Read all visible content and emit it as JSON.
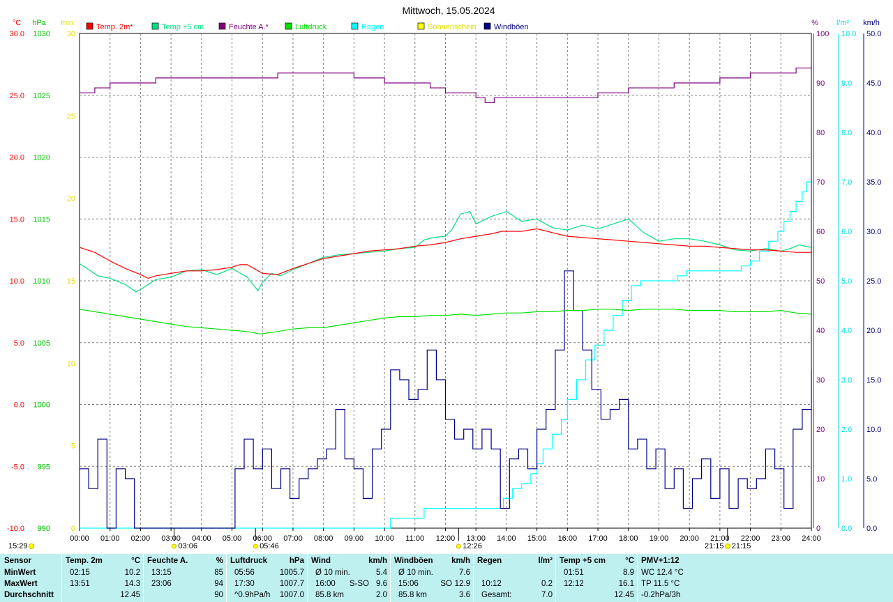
{
  "chart_data": {
    "type": "line",
    "title": "Mittwoch, 15.05.2024",
    "x_ticks": [
      "00:00",
      "01:00",
      "02:00",
      "03:00",
      "04:00",
      "05:00",
      "06:00",
      "07:00",
      "08:00",
      "09:00",
      "10:00",
      "11:00",
      "12:00",
      "13:00",
      "14:00",
      "15:00",
      "16:00",
      "17:00",
      "18:00",
      "19:00",
      "20:00",
      "21:00",
      "22:00",
      "23:00",
      "24:00"
    ],
    "grid": true,
    "axes": {
      "temp": {
        "unit": "°C",
        "range": [
          -10,
          30
        ],
        "ticks": [
          "30.0",
          "25.0",
          "20.0",
          "15.0",
          "10.0",
          "5.0",
          "0.0",
          "-5.0",
          "-10.0"
        ],
        "color": "#ff0000"
      },
      "pressure": {
        "unit": "hPa",
        "range": [
          990,
          1030
        ],
        "ticks": [
          "1030",
          "1025",
          "1020",
          "1015",
          "1010",
          "1005",
          "1000",
          "995",
          "990"
        ],
        "color": "#00c000"
      },
      "sun": {
        "unit": "min",
        "range": [
          0,
          30
        ],
        "ticks": [
          "30",
          "25",
          "20",
          "15",
          "10",
          "5",
          "0"
        ],
        "color": "#e0e000"
      },
      "humidity": {
        "unit": "%",
        "range": [
          0,
          100
        ],
        "ticks": [
          "100",
          "90",
          "80",
          "70",
          "60",
          "50",
          "40",
          "30",
          "20",
          "10",
          "0"
        ],
        "color": "#800080"
      },
      "rain": {
        "unit": "l/m²",
        "range": [
          0,
          10
        ],
        "ticks": [
          "10.0",
          "9.0",
          "8.0",
          "7.0",
          "6.0",
          "5.0",
          "4.0",
          "3.0",
          "2.0",
          "1.0",
          "0.0"
        ],
        "color": "#00e0e0"
      },
      "wind": {
        "unit": "km/h",
        "range": [
          0,
          50
        ],
        "ticks": [
          "50.0",
          "45.0",
          "40.0",
          "35.0",
          "30.0",
          "25.0",
          "20.0",
          "15.0",
          "10.0",
          "5.0",
          "0.0"
        ],
        "color": "#000080"
      }
    },
    "legend": [
      {
        "name": "Temp. 2m*",
        "color": "#ff0000"
      },
      {
        "name": "Temp +5 cm",
        "color": "#00e080"
      },
      {
        "name": "Feuchte A.*",
        "color": "#800080"
      },
      {
        "name": "Luftdruck",
        "color": "#00e000"
      },
      {
        "name": "Regen",
        "color": "#00ffff"
      },
      {
        "name": "Sonnenschein",
        "color": "#ffff00"
      },
      {
        "name": "Windböen",
        "color": "#000080"
      }
    ],
    "series": [
      {
        "name": "Temp. 2m*",
        "axis": "temp",
        "color": "#ff0000",
        "x": [
          0,
          0.5,
          1,
          1.5,
          2,
          2.25,
          2.5,
          3,
          3.5,
          4,
          4.5,
          5,
          5.25,
          5.5,
          6,
          6.5,
          7,
          7.5,
          8,
          8.5,
          9,
          9.5,
          10,
          10.5,
          11,
          11.5,
          12,
          12.5,
          13,
          13.5,
          13.85,
          14.5,
          15,
          15.5,
          16,
          16.5,
          17,
          17.5,
          18,
          18.5,
          19,
          19.5,
          20,
          20.5,
          21,
          21.5,
          22,
          22.5,
          23,
          23.5,
          24
        ],
        "y": [
          12.7,
          12.3,
          11.6,
          11.0,
          10.5,
          10.2,
          10.4,
          10.6,
          10.8,
          10.8,
          10.9,
          11.1,
          11.3,
          11.3,
          10.6,
          10.5,
          11.0,
          11.4,
          11.8,
          12.0,
          12.2,
          12.4,
          12.5,
          12.6,
          12.8,
          12.9,
          13.1,
          13.4,
          13.6,
          13.8,
          14.0,
          14.0,
          14.2,
          13.9,
          13.6,
          13.5,
          13.4,
          13.3,
          13.2,
          13.1,
          13.0,
          12.9,
          12.8,
          12.8,
          12.7,
          12.6,
          12.5,
          12.5,
          12.4,
          12.3,
          12.3
        ]
      },
      {
        "name": "Temp +5 cm",
        "axis": "temp",
        "color": "#00e080",
        "x": [
          0,
          0.3,
          0.6,
          1,
          1.5,
          1.85,
          2,
          2.5,
          3,
          3.5,
          4,
          4.5,
          5,
          5.5,
          5.85,
          6,
          6.3,
          6.6,
          7,
          7.5,
          8,
          8.5,
          9,
          9.5,
          10,
          10.5,
          11,
          11.3,
          11.6,
          12,
          12.2,
          12.5,
          12.8,
          13,
          13.5,
          14,
          14.5,
          15,
          15.5,
          16,
          16.5,
          17,
          17.5,
          18,
          18.5,
          19,
          19.5,
          20,
          20.5,
          21,
          21.5,
          22,
          22.5,
          23,
          23.3,
          23.6,
          24
        ],
        "y": [
          11.4,
          10.9,
          10.4,
          10.2,
          9.7,
          9.1,
          9.3,
          10.1,
          10.3,
          10.8,
          10.9,
          10.5,
          11.0,
          10.3,
          9.2,
          9.9,
          10.6,
          10.4,
          10.9,
          11.4,
          11.9,
          12.1,
          12.2,
          12.3,
          12.4,
          12.6,
          12.7,
          13.3,
          13.5,
          13.6,
          14.1,
          15.4,
          15.6,
          14.6,
          15.2,
          15.6,
          14.8,
          15.0,
          14.3,
          14.1,
          14.5,
          14.2,
          14.6,
          15.0,
          13.9,
          13.2,
          13.4,
          13.4,
          13.2,
          12.9,
          12.5,
          12.4,
          12.6,
          12.4,
          12.6,
          12.9,
          12.7
        ]
      },
      {
        "name": "Feuchte A.*",
        "axis": "humidity",
        "color": "#800080",
        "x": [
          0,
          0.5,
          1,
          1.5,
          2,
          2.5,
          3,
          3.5,
          4,
          4.5,
          5,
          5.5,
          6,
          6.5,
          7,
          7.5,
          8,
          8.5,
          9,
          9.5,
          10,
          10.5,
          11,
          11.5,
          12,
          12.5,
          13,
          13.3,
          13.6,
          14,
          14.5,
          15,
          15.5,
          16,
          16.5,
          17,
          17.5,
          18,
          18.5,
          19,
          19.5,
          20,
          20.5,
          21,
          21.5,
          22,
          22.5,
          23,
          23.5,
          24
        ],
        "y": [
          88,
          89,
          90,
          90,
          90,
          91,
          91,
          91,
          91,
          91,
          91,
          91,
          91,
          92,
          92,
          92,
          92,
          92,
          91,
          91,
          90,
          90,
          90,
          89,
          88,
          88,
          87,
          86,
          87,
          87,
          87,
          87,
          87,
          87,
          87,
          88,
          88,
          89,
          89,
          89,
          90,
          90,
          90,
          91,
          91,
          92,
          92,
          92,
          93,
          93
        ]
      },
      {
        "name": "Luftdruck",
        "axis": "pressure",
        "color": "#00e000",
        "x": [
          0,
          0.5,
          1,
          1.5,
          2,
          2.5,
          3,
          3.5,
          4,
          4.5,
          5,
          5.5,
          5.93,
          6.5,
          7,
          7.5,
          8,
          8.5,
          9,
          9.5,
          10,
          10.5,
          11,
          11.5,
          12,
          12.5,
          13,
          13.5,
          14,
          14.5,
          15,
          15.5,
          16,
          16.5,
          17,
          17.5,
          18,
          18.5,
          19,
          19.5,
          20,
          20.5,
          21,
          21.5,
          22,
          22.5,
          23,
          23.5,
          24
        ],
        "y": [
          1007.7,
          1007.5,
          1007.3,
          1007.1,
          1006.9,
          1006.7,
          1006.5,
          1006.3,
          1006.2,
          1006.1,
          1006.0,
          1005.9,
          1005.7,
          1005.9,
          1006.1,
          1006.2,
          1006.2,
          1006.4,
          1006.6,
          1006.8,
          1007.0,
          1007.1,
          1007.1,
          1007.2,
          1007.2,
          1007.3,
          1007.2,
          1007.3,
          1007.4,
          1007.4,
          1007.5,
          1007.5,
          1007.6,
          1007.6,
          1007.7,
          1007.7,
          1007.6,
          1007.7,
          1007.7,
          1007.7,
          1007.6,
          1007.6,
          1007.6,
          1007.5,
          1007.5,
          1007.5,
          1007.6,
          1007.4,
          1007.3
        ]
      },
      {
        "name": "Regen",
        "axis": "rain",
        "color": "#00ffff",
        "x": [
          0,
          10.0,
          10.2,
          11.3,
          11.3,
          13.5,
          13.9,
          14.2,
          14.5,
          14.8,
          15.0,
          15.2,
          15.5,
          15.8,
          16.0,
          16.3,
          16.6,
          16.9,
          17.2,
          17.5,
          17.8,
          18.1,
          18.4,
          18.7,
          19.0,
          19.3,
          19.6,
          19.9,
          20.2,
          20.5,
          20.8,
          21.0,
          21.4,
          21.7,
          22.0,
          22.3,
          22.6,
          22.9,
          23.1,
          23.3,
          23.5,
          23.7,
          23.85,
          24
        ],
        "y": [
          0,
          0,
          0.2,
          0.2,
          0.4,
          0.4,
          0.6,
          0.8,
          0.9,
          1.1,
          1.3,
          1.6,
          1.9,
          2.2,
          2.6,
          3.0,
          3.4,
          3.7,
          4.0,
          4.3,
          4.6,
          4.9,
          5.0,
          5.0,
          5.0,
          5.0,
          5.1,
          5.2,
          5.2,
          5.2,
          5.2,
          5.2,
          5.2,
          5.3,
          5.4,
          5.6,
          5.8,
          6.0,
          6.2,
          6.4,
          6.6,
          6.8,
          7.0,
          7.0
        ]
      },
      {
        "name": "Windböen",
        "axis": "wind",
        "color": "#000080",
        "x": [
          0,
          0.3,
          0.6,
          0.9,
          1.2,
          1.5,
          1.8,
          2.1,
          2.4,
          2.7,
          3.0,
          3.3,
          3.6,
          3.9,
          4.2,
          4.5,
          4.8,
          5.1,
          5.4,
          5.7,
          6.0,
          6.3,
          6.6,
          6.9,
          7.2,
          7.5,
          7.8,
          8.1,
          8.4,
          8.7,
          9.0,
          9.3,
          9.6,
          9.9,
          10.2,
          10.5,
          10.8,
          11.1,
          11.4,
          11.7,
          12.0,
          12.3,
          12.6,
          12.9,
          13.2,
          13.5,
          13.8,
          14.1,
          14.4,
          14.7,
          15.0,
          15.3,
          15.6,
          15.9,
          16.2,
          16.5,
          16.8,
          17.1,
          17.4,
          17.7,
          18.0,
          18.3,
          18.6,
          18.9,
          19.2,
          19.5,
          19.8,
          20.1,
          20.4,
          20.7,
          21.0,
          21.3,
          21.6,
          21.9,
          22.2,
          22.5,
          22.8,
          23.1,
          23.4,
          23.7,
          24
        ],
        "y": [
          6,
          4,
          9,
          0,
          6,
          5,
          0,
          0,
          0,
          0,
          0,
          0,
          0,
          0,
          0,
          0,
          0,
          6,
          9,
          6,
          8,
          4,
          6,
          3,
          5,
          6,
          7,
          8,
          12,
          7,
          6,
          3,
          8,
          10,
          16,
          15,
          13,
          14,
          18,
          15,
          11,
          9,
          10,
          8,
          10,
          8,
          2,
          7,
          8,
          6,
          10,
          12,
          18,
          26,
          22,
          18,
          14,
          11,
          12,
          13,
          8,
          9,
          6,
          8,
          4,
          6,
          2,
          5,
          7,
          3,
          6,
          2,
          5,
          4,
          5,
          8,
          6,
          2,
          10,
          12,
          16
        ]
      }
    ],
    "event_markers": [
      {
        "label": "03:06",
        "x": 3.1
      },
      {
        "label": "05:46",
        "x": 5.77
      },
      {
        "label": "12:26",
        "x": 12.43
      },
      {
        "label": "21:15",
        "x": 21.25
      }
    ],
    "sun_sunset": {
      "sunrise": "15:29",
      "sunset": "21:15"
    }
  },
  "stats": {
    "cols": [
      {
        "h": "Sensor",
        "unit": "",
        "rows": [
          [
            "MinWert",
            "",
            ""
          ],
          [
            "MaxWert",
            "",
            ""
          ],
          [
            "Durchschnitt",
            "",
            ""
          ]
        ]
      },
      {
        "h": "Temp. 2m",
        "unit": "°C",
        "rows": [
          [
            "02:15",
            "",
            "10.2"
          ],
          [
            "13:51",
            "",
            "14.3"
          ],
          [
            "",
            "",
            "12.45"
          ]
        ]
      },
      {
        "h": "Feuchte A.",
        "unit": "%",
        "rows": [
          [
            "13:15",
            "",
            "85"
          ],
          [
            "23:06",
            "",
            "94"
          ],
          [
            "",
            "",
            "90"
          ]
        ]
      },
      {
        "h": "Luftdruck",
        "unit": "hPa",
        "rows": [
          [
            "05:56",
            "",
            "1005.7"
          ],
          [
            "17:30",
            "",
            "1007.7"
          ],
          [
            "^0.9hPa/h",
            "",
            "1007.0"
          ]
        ]
      },
      {
        "h": "Wind",
        "unit": "km/h",
        "rows": [
          [
            "Ø 10 min.",
            "",
            "5.4"
          ],
          [
            "16:00",
            "S-SO",
            "9.6"
          ],
          [
            "85.8 km",
            "",
            "2.0"
          ]
        ]
      },
      {
        "h": "Windböen",
        "unit": "km/h",
        "rows": [
          [
            "Ø 10 min.",
            "",
            "7.6"
          ],
          [
            "15:06",
            "SO",
            "12.9"
          ],
          [
            "85.8 km",
            "",
            "3.6"
          ]
        ]
      },
      {
        "h": "Regen",
        "unit": "l/m²",
        "rows": [
          [
            "",
            "",
            ""
          ],
          [
            "10:12",
            "",
            "0.2"
          ],
          [
            "Gesamt:",
            "",
            "7.0"
          ]
        ]
      },
      {
        "h": "Temp +5 cm",
        "unit": "°C",
        "rows": [
          [
            "01:51",
            "",
            "8.9"
          ],
          [
            "12:12",
            "",
            "16.1"
          ],
          [
            "",
            "",
            "12.45"
          ]
        ]
      },
      {
        "h": "PMV+1:12",
        "unit": "",
        "rows": [
          [
            "WC 12.4 °C",
            "",
            ""
          ],
          [
            "TP 11.5 °C",
            "",
            ""
          ],
          [
            "-0.2hPa/3h",
            "",
            ""
          ]
        ]
      }
    ]
  }
}
